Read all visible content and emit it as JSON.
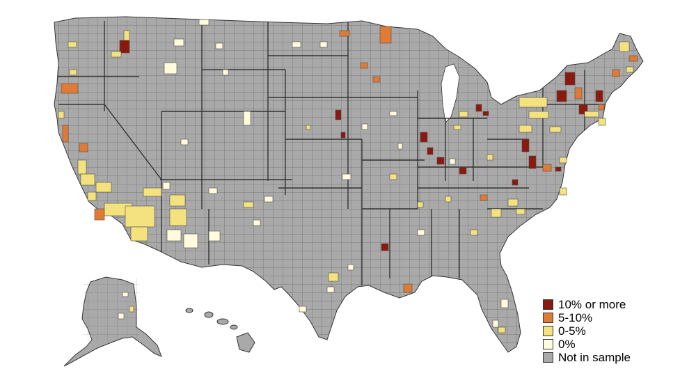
{
  "map": {
    "colors": {
      "not_in_sample": "#a9a9a9",
      "zero": "#fffbdc",
      "low": "#f4e27e",
      "mid": "#e07b35",
      "high": "#8a1a10",
      "border": "#4d4d4d"
    }
  },
  "legend": {
    "items": [
      {
        "label": "10% or more",
        "color": "#8a1a10"
      },
      {
        "label": "5-10%",
        "color": "#e07b35"
      },
      {
        "label": "0-5%",
        "color": "#f4e27e"
      },
      {
        "label": "0%",
        "color": "#fffbdc"
      },
      {
        "label": "Not in sample",
        "color": "#a9a9a9"
      }
    ]
  }
}
